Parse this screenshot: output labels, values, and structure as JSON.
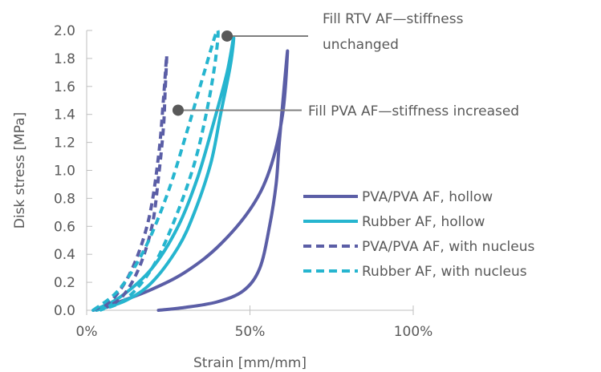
{
  "chart_data": {
    "type": "line",
    "title": "",
    "xlabel": "Strain [mm/mm]",
    "ylabel": "Disk stress [MPa]",
    "xlim": [
      0,
      1
    ],
    "ylim": [
      0,
      2.0
    ],
    "x_ticks": [
      0,
      0.5,
      1.0
    ],
    "x_tick_labels": [
      "0%",
      "50%",
      "100%"
    ],
    "y_ticks": [
      0.0,
      0.2,
      0.4,
      0.6,
      0.8,
      1.0,
      1.2,
      1.4,
      1.6,
      1.8,
      2.0
    ],
    "y_tick_labels": [
      "0.0",
      "0.2",
      "0.4",
      "0.6",
      "0.8",
      "1.0",
      "1.2",
      "1.4",
      "1.6",
      "1.8",
      "2.0"
    ],
    "grid": false,
    "legend_position": "right",
    "series": [
      {
        "name": "PVA/PVA AF, hollow",
        "color": "#5b5ea6",
        "dash": "solid",
        "points": [
          [
            0.02,
            0.0
          ],
          [
            0.1,
            0.06
          ],
          [
            0.2,
            0.15
          ],
          [
            0.3,
            0.27
          ],
          [
            0.4,
            0.45
          ],
          [
            0.5,
            0.72
          ],
          [
            0.56,
            1.0
          ],
          [
            0.6,
            1.4
          ],
          [
            0.615,
            1.85
          ],
          [
            0.605,
            1.6
          ],
          [
            0.59,
            1.2
          ],
          [
            0.58,
            0.9
          ],
          [
            0.56,
            0.6
          ],
          [
            0.53,
            0.3
          ],
          [
            0.48,
            0.14
          ],
          [
            0.4,
            0.06
          ],
          [
            0.3,
            0.02
          ],
          [
            0.22,
            0.0
          ]
        ]
      },
      {
        "name": "Rubber AF, hollow",
        "color": "#26b5cf",
        "dash": "solid",
        "points": [
          [
            0.02,
            0.0
          ],
          [
            0.1,
            0.09
          ],
          [
            0.2,
            0.3
          ],
          [
            0.28,
            0.6
          ],
          [
            0.34,
            0.95
          ],
          [
            0.39,
            1.35
          ],
          [
            0.43,
            1.7
          ],
          [
            0.45,
            1.95
          ],
          [
            0.44,
            1.75
          ],
          [
            0.41,
            1.4
          ],
          [
            0.38,
            1.05
          ],
          [
            0.33,
            0.7
          ],
          [
            0.28,
            0.45
          ],
          [
            0.2,
            0.2
          ],
          [
            0.12,
            0.07
          ],
          [
            0.03,
            0.0
          ]
        ]
      },
      {
        "name": "PVA/PVA AF, with nucleus",
        "color": "#5b5ea6",
        "dash": "dashed",
        "points": [
          [
            0.02,
            0.0
          ],
          [
            0.08,
            0.08
          ],
          [
            0.14,
            0.3
          ],
          [
            0.19,
            0.65
          ],
          [
            0.22,
            1.1
          ],
          [
            0.235,
            1.5
          ],
          [
            0.245,
            1.82
          ],
          [
            0.24,
            1.55
          ],
          [
            0.235,
            1.3
          ],
          [
            0.22,
            0.95
          ],
          [
            0.2,
            0.6
          ],
          [
            0.16,
            0.3
          ],
          [
            0.11,
            0.1
          ],
          [
            0.06,
            0.02
          ]
        ]
      },
      {
        "name": "Rubber AF, with nucleus",
        "color": "#26b5cf",
        "dash": "dashed",
        "points": [
          [
            0.02,
            0.0
          ],
          [
            0.1,
            0.15
          ],
          [
            0.18,
            0.45
          ],
          [
            0.25,
            0.85
          ],
          [
            0.31,
            1.3
          ],
          [
            0.36,
            1.7
          ],
          [
            0.4,
            2.0
          ],
          [
            0.395,
            1.8
          ],
          [
            0.37,
            1.45
          ],
          [
            0.33,
            1.05
          ],
          [
            0.27,
            0.65
          ],
          [
            0.2,
            0.3
          ],
          [
            0.12,
            0.08
          ],
          [
            0.04,
            0.0
          ]
        ]
      }
    ],
    "annotations": [
      {
        "text_lines": [
          "Fill RTV AF—stiffness",
          "unchanged"
        ],
        "x": 0.43,
        "y": 1.96
      },
      {
        "text_lines": [
          "Fill PVA AF—stiffness increased"
        ],
        "x": 0.28,
        "y": 1.43
      }
    ]
  }
}
